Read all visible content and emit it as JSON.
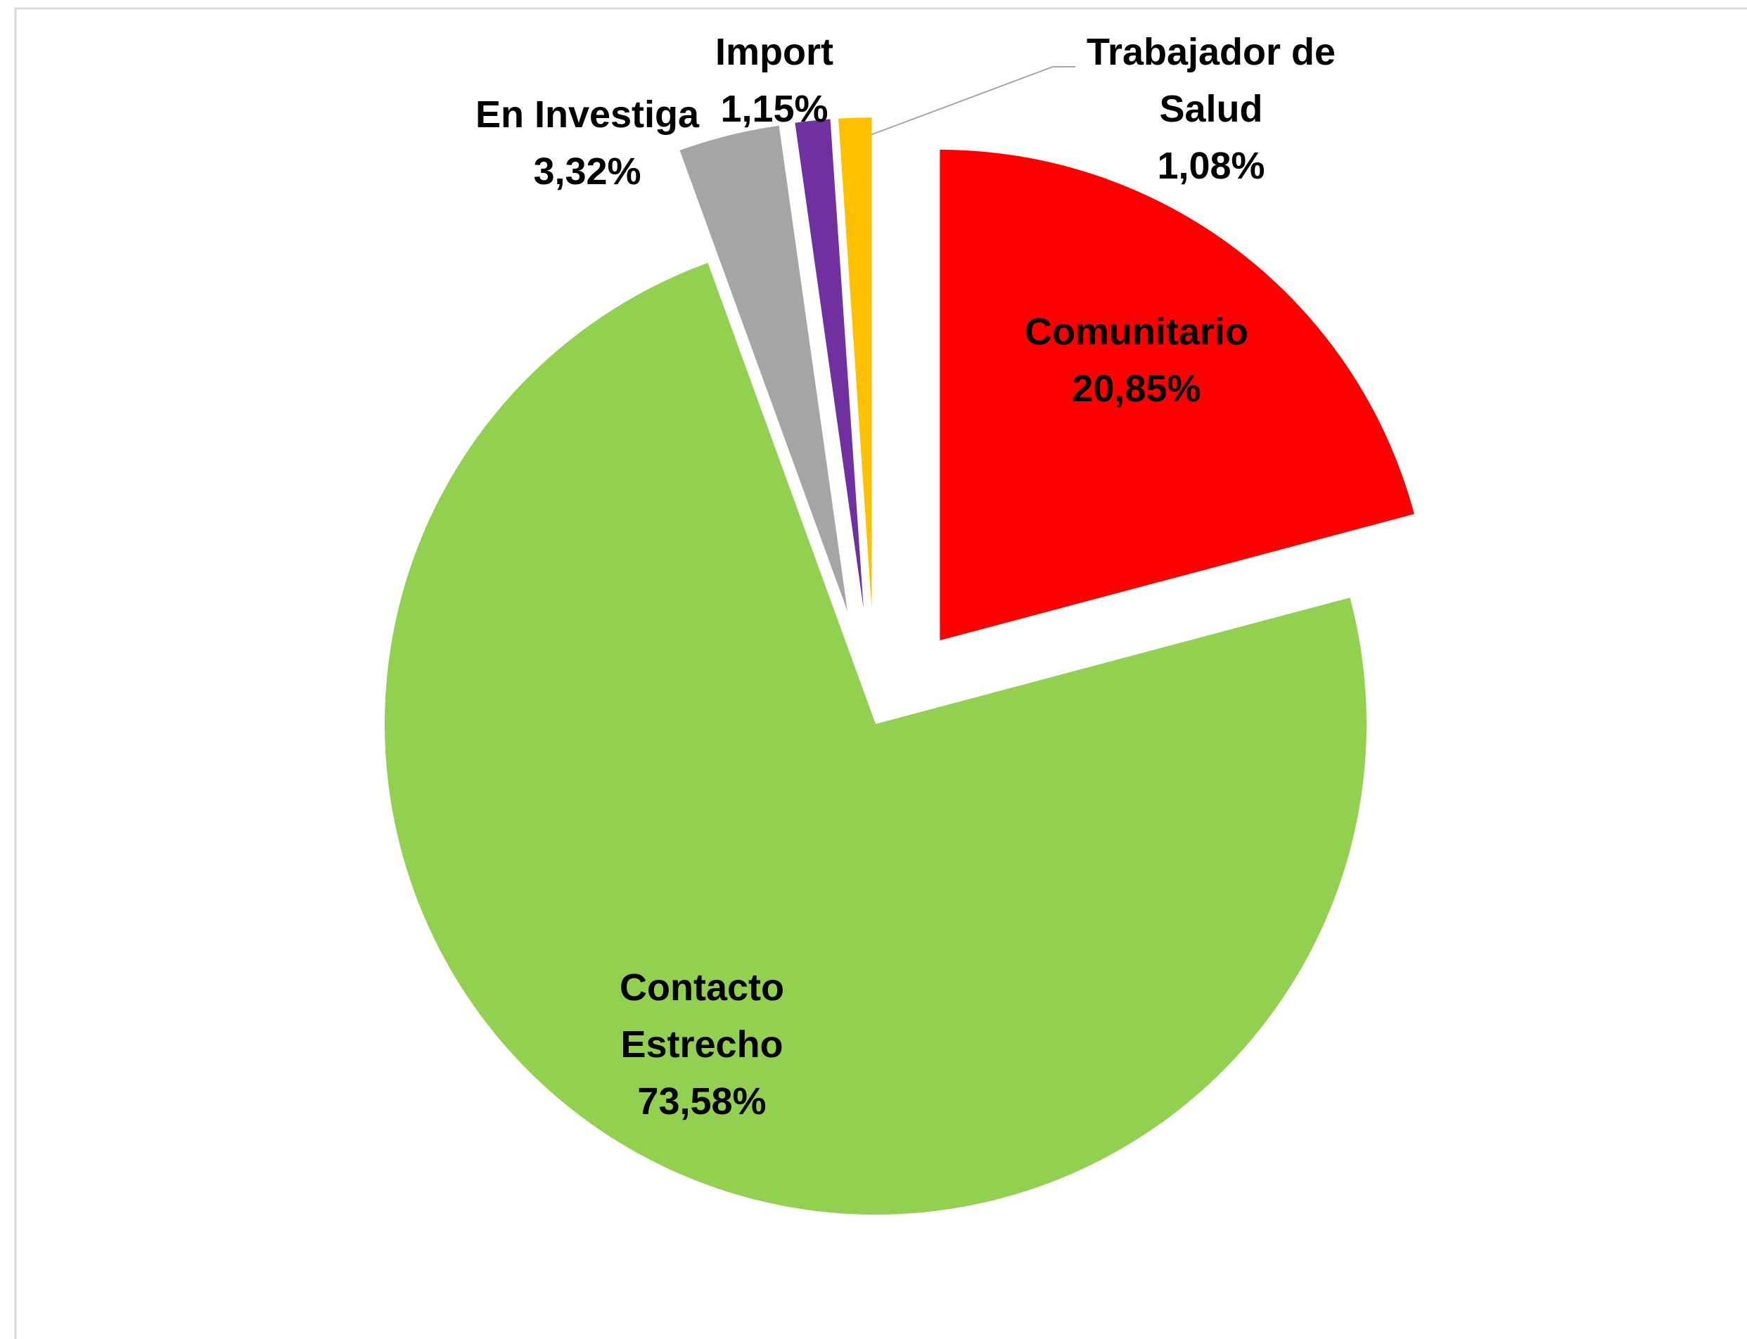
{
  "chart_data": {
    "type": "pie",
    "categories": [
      "Comunitario",
      "Contacto Estrecho",
      "En Investiga",
      "Import",
      "Trabajador de Salud"
    ],
    "values": [
      20.85,
      73.58,
      3.32,
      1.15,
      1.08
    ],
    "value_labels": [
      "20,85%",
      "73,58%",
      "3,32%",
      "1,15%",
      "1,08%"
    ],
    "colors": [
      "#ff0000",
      "#92d050",
      "#a5a5a5",
      "#7030a0",
      "#ffc000"
    ]
  }
}
